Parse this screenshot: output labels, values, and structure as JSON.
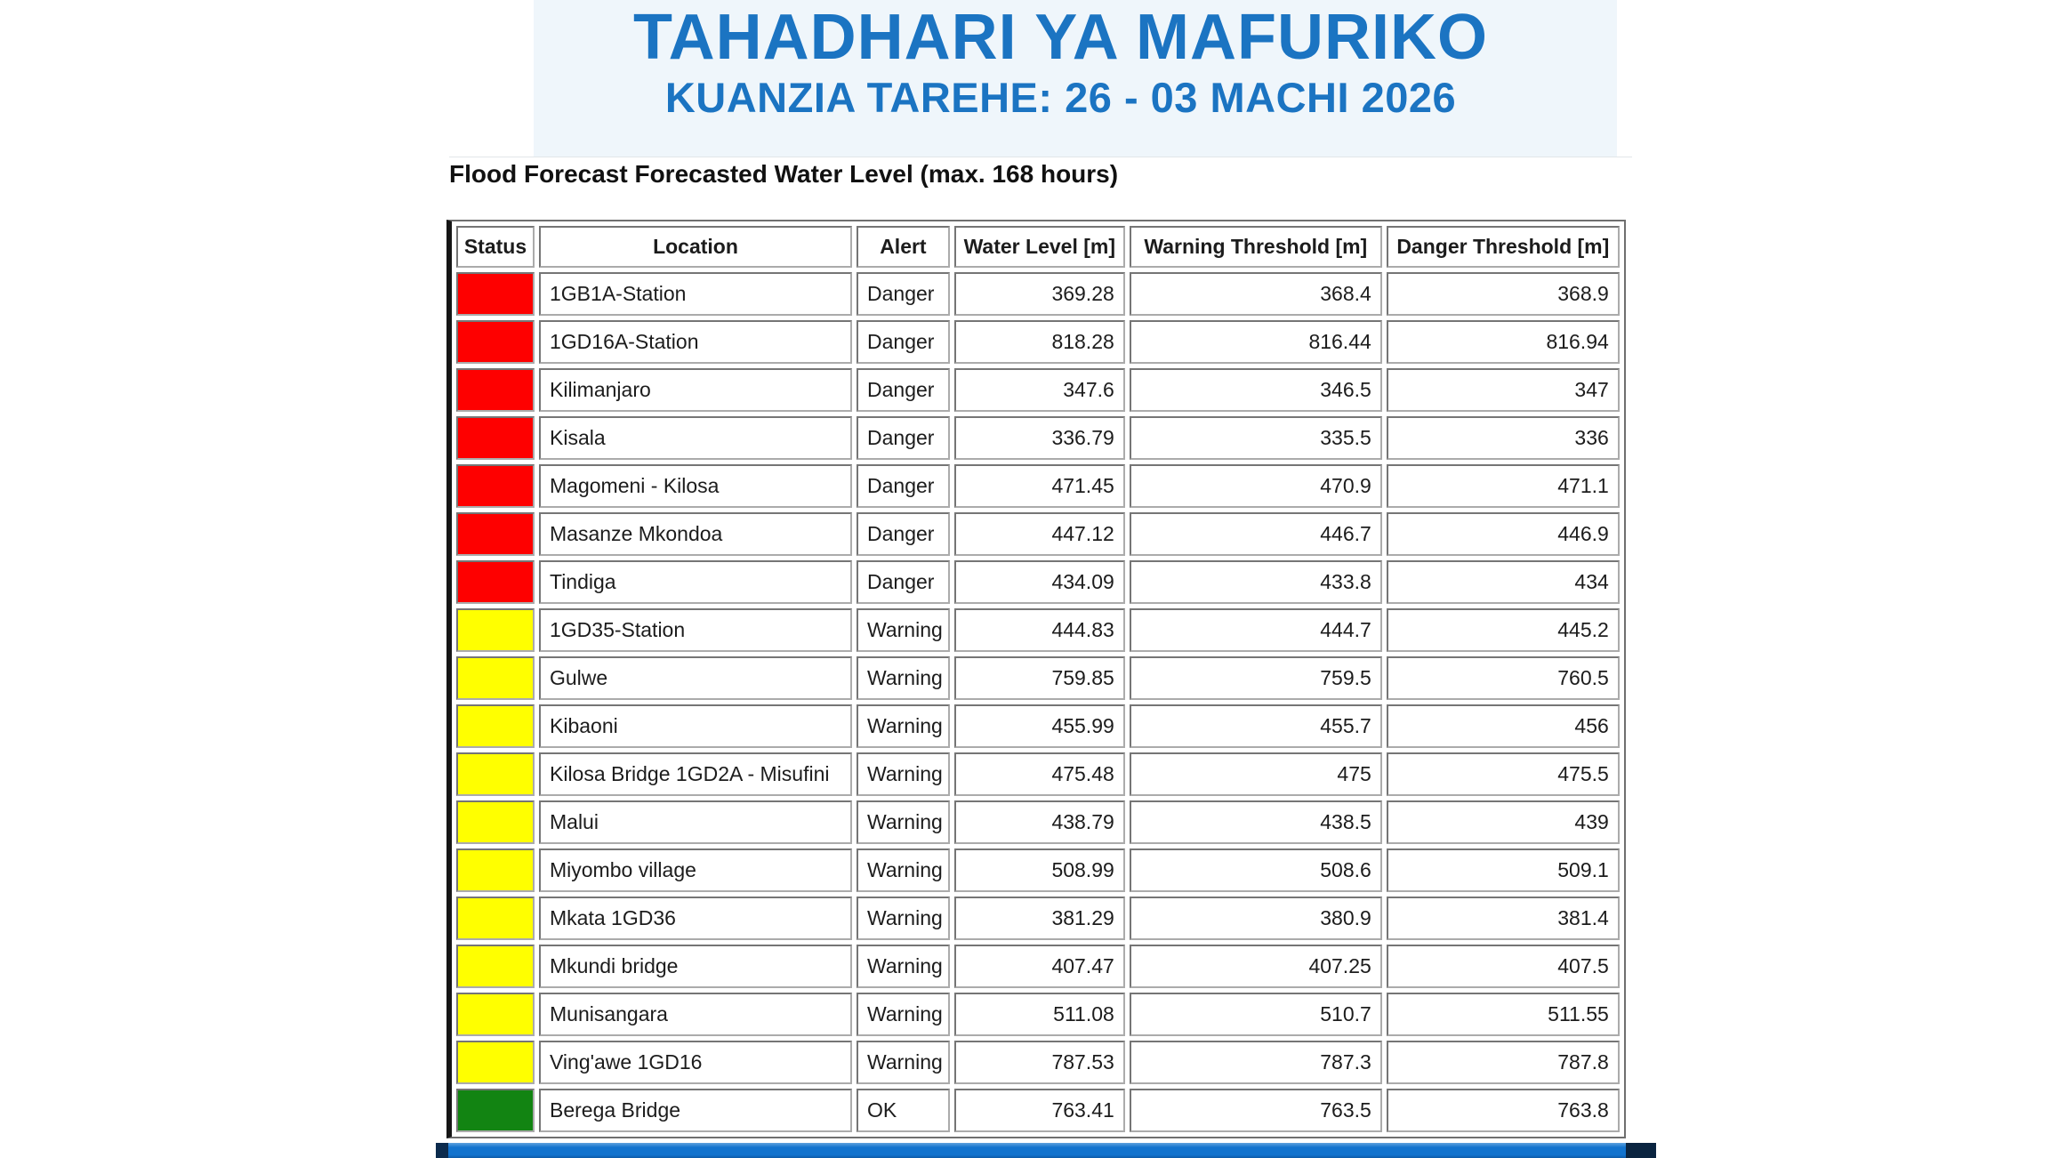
{
  "header": {
    "title": "TAHADHARI YA MAFURIKO",
    "subtitle": "KUANZIA TAREHE: 26 - 03 MACHI 2026"
  },
  "table": {
    "heading": "Flood Forecast Forecasted Water Level (max. 168 hours)",
    "columns": [
      "Status",
      "Location",
      "Alert",
      "Water Level [m]",
      "Warning Threshold [m]",
      "Danger Threshold [m]"
    ],
    "rows": [
      {
        "status_color": "#fe0000",
        "location": "1GB1A-Station",
        "alert": "Danger",
        "water_level": "369.28",
        "warning_threshold": "368.4",
        "danger_threshold": "368.9"
      },
      {
        "status_color": "#fe0000",
        "location": "1GD16A-Station",
        "alert": "Danger",
        "water_level": "818.28",
        "warning_threshold": "816.44",
        "danger_threshold": "816.94"
      },
      {
        "status_color": "#fe0000",
        "location": "Kilimanjaro",
        "alert": "Danger",
        "water_level": "347.6",
        "warning_threshold": "346.5",
        "danger_threshold": "347"
      },
      {
        "status_color": "#fe0000",
        "location": "Kisala",
        "alert": "Danger",
        "water_level": "336.79",
        "warning_threshold": "335.5",
        "danger_threshold": "336"
      },
      {
        "status_color": "#fe0000",
        "location": "Magomeni - Kilosa",
        "alert": "Danger",
        "water_level": "471.45",
        "warning_threshold": "470.9",
        "danger_threshold": "471.1"
      },
      {
        "status_color": "#fe0000",
        "location": "Masanze Mkondoa",
        "alert": "Danger",
        "water_level": "447.12",
        "warning_threshold": "446.7",
        "danger_threshold": "446.9"
      },
      {
        "status_color": "#fe0000",
        "location": "Tindiga",
        "alert": "Danger",
        "water_level": "434.09",
        "warning_threshold": "433.8",
        "danger_threshold": "434"
      },
      {
        "status_color": "#ffff00",
        "location": "1GD35-Station",
        "alert": "Warning",
        "water_level": "444.83",
        "warning_threshold": "444.7",
        "danger_threshold": "445.2"
      },
      {
        "status_color": "#ffff00",
        "location": "Gulwe",
        "alert": "Warning",
        "water_level": "759.85",
        "warning_threshold": "759.5",
        "danger_threshold": "760.5"
      },
      {
        "status_color": "#ffff00",
        "location": "Kibaoni",
        "alert": "Warning",
        "water_level": "455.99",
        "warning_threshold": "455.7",
        "danger_threshold": "456"
      },
      {
        "status_color": "#ffff00",
        "location": "Kilosa Bridge 1GD2A - Misufini",
        "alert": "Warning",
        "water_level": "475.48",
        "warning_threshold": "475",
        "danger_threshold": "475.5"
      },
      {
        "status_color": "#ffff00",
        "location": "Malui",
        "alert": "Warning",
        "water_level": "438.79",
        "warning_threshold": "438.5",
        "danger_threshold": "439"
      },
      {
        "status_color": "#ffff00",
        "location": "Miyombo village",
        "alert": "Warning",
        "water_level": "508.99",
        "warning_threshold": "508.6",
        "danger_threshold": "509.1"
      },
      {
        "status_color": "#ffff00",
        "location": "Mkata 1GD36",
        "alert": "Warning",
        "water_level": "381.29",
        "warning_threshold": "380.9",
        "danger_threshold": "381.4"
      },
      {
        "status_color": "#ffff00",
        "location": "Mkundi bridge",
        "alert": "Warning",
        "water_level": "407.47",
        "warning_threshold": "407.25",
        "danger_threshold": "407.5"
      },
      {
        "status_color": "#ffff00",
        "location": "Munisangara",
        "alert": "Warning",
        "water_level": "511.08",
        "warning_threshold": "510.7",
        "danger_threshold": "511.55"
      },
      {
        "status_color": "#ffff00",
        "location": "Ving'awe 1GD16",
        "alert": "Warning",
        "water_level": "787.53",
        "warning_threshold": "787.3",
        "danger_threshold": "787.8"
      },
      {
        "status_color": "#128412",
        "location": "Berega Bridge",
        "alert": "OK",
        "water_level": "763.41",
        "warning_threshold": "763.5",
        "danger_threshold": "763.8"
      }
    ]
  },
  "colors": {
    "title_blue": "#1b74c2",
    "status_danger_red": "#fe0000",
    "status_warning_yellow": "#ffff00",
    "status_ok_green": "#128412",
    "bottom_bar_blue": "#1273ce",
    "top_band_blue": "#eff6fb"
  }
}
